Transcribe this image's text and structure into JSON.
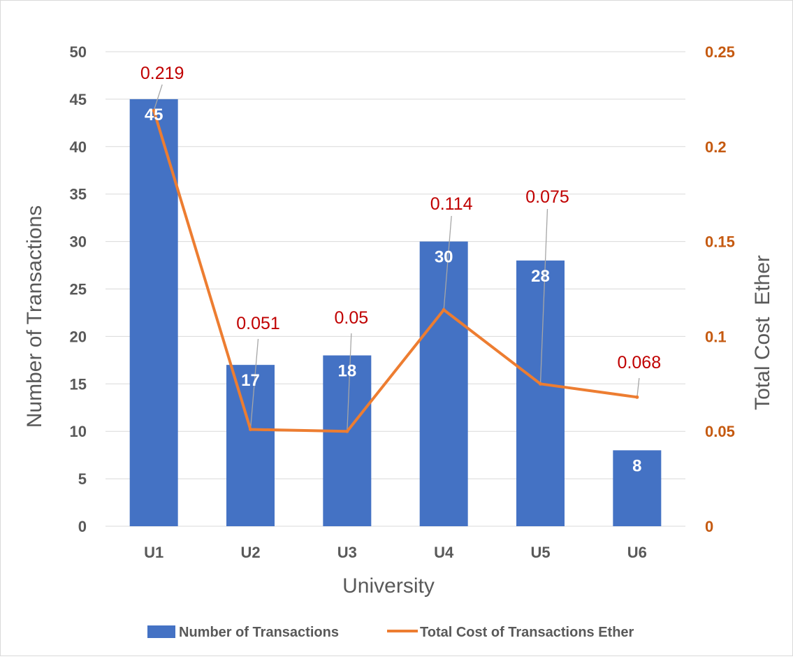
{
  "chart_data": {
    "type": "bar+line",
    "categories": [
      "U1",
      "U2",
      "U3",
      "U4",
      "U5",
      "U6"
    ],
    "series": [
      {
        "name": "Number of Transactions",
        "type": "bar",
        "axis": "left",
        "values": [
          45,
          17,
          18,
          30,
          28,
          8
        ],
        "labels": [
          "45",
          "17",
          "18",
          "30",
          "28",
          "8"
        ],
        "color": "#4472c4"
      },
      {
        "name": "Total Cost of Transactions Ether",
        "type": "line",
        "axis": "right",
        "values": [
          0.219,
          0.051,
          0.05,
          0.114,
          0.075,
          0.068
        ],
        "labels": [
          "0.219",
          "0.051",
          "0.05",
          "0.114",
          "0.075",
          "0.068"
        ],
        "color": "#ed7d31"
      }
    ],
    "xlabel": "University",
    "ylabel_left": "Number of Transactions",
    "ylabel_right": "Total Cost  Ether",
    "ylim_left": [
      0,
      50
    ],
    "ylim_right": [
      0,
      0.25
    ],
    "yticks_left": [
      "0",
      "5",
      "10",
      "15",
      "20",
      "25",
      "30",
      "35",
      "40",
      "45",
      "50"
    ],
    "yticks_right": [
      "0",
      "0.05",
      "0.1",
      "0.15",
      "0.2",
      "0.25"
    ],
    "grid": true,
    "legend_position": "bottom",
    "colors": {
      "bar": "#4472c4",
      "line": "#ed7d31",
      "line_label": "#c00000",
      "right_axis": "#c55a11",
      "grid": "#d9d9d9"
    }
  }
}
